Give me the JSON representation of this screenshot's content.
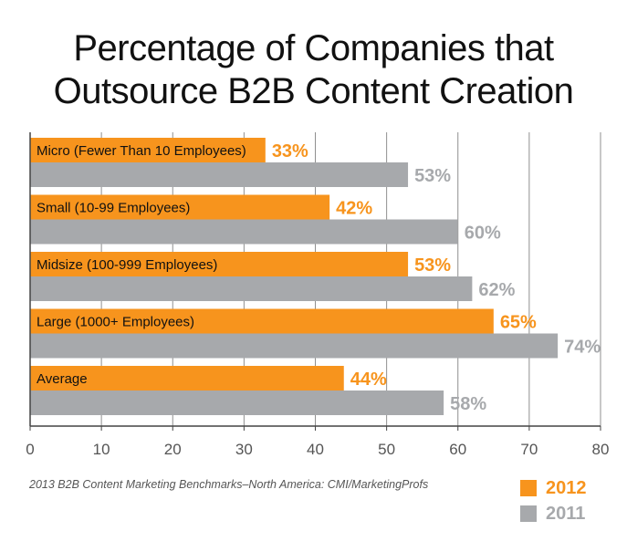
{
  "chart_data": {
    "type": "bar",
    "orientation": "horizontal",
    "title_lines": [
      "Percentage of Companies that",
      "Outsource B2B Content Creation"
    ],
    "categories": [
      "Micro (Fewer Than 10 Employees)",
      "Small (10-99 Employees)",
      "Midsize (100-999 Employees)",
      "Large (1000+ Employees)",
      "Average"
    ],
    "series": [
      {
        "name": "2012",
        "color": "#F7941D",
        "values": [
          33,
          42,
          53,
          65,
          44
        ],
        "labels": [
          "33%",
          "42%",
          "53%",
          "65%",
          "44%"
        ]
      },
      {
        "name": "2011",
        "color": "#A7A9AC",
        "values": [
          53,
          60,
          62,
          74,
          58
        ],
        "labels": [
          "53%",
          "60%",
          "62%",
          "74%",
          "58%"
        ]
      }
    ],
    "xlim": [
      0,
      80
    ],
    "xticks": [
      0,
      10,
      20,
      30,
      40,
      50,
      60,
      70,
      80
    ],
    "tick_labels": [
      "0",
      "10",
      "20",
      "30",
      "40",
      "50",
      "60",
      "70",
      "80"
    ],
    "source": "2013 B2B Content Marketing Benchmarks–North America: CMI/MarketingProfs",
    "legend_position": "bottom-right"
  }
}
